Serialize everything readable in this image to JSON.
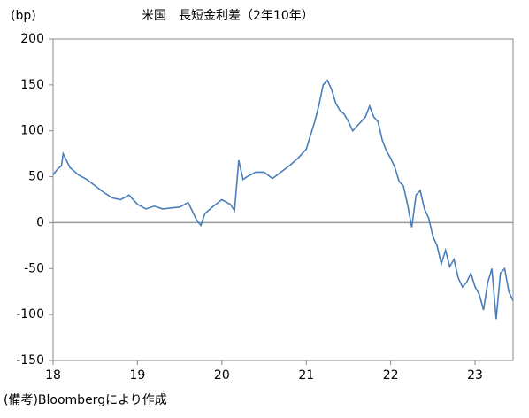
{
  "chart_data": {
    "type": "line",
    "title": "米国　長短金利差（2年10年）",
    "y_unit": "(bp)",
    "note": "(備考)Bloombergにより作成",
    "xlim": [
      18,
      23.45
    ],
    "xticks": [
      18,
      19,
      20,
      21,
      22,
      23
    ],
    "ylim": [
      -150,
      200
    ],
    "yticks": [
      -150,
      -100,
      -50,
      0,
      50,
      100,
      150,
      200
    ],
    "zero_line": true,
    "series": [
      {
        "color": "#4a7ebb",
        "x": [
          18.0,
          18.05,
          18.1,
          18.12,
          18.2,
          18.3,
          18.4,
          18.5,
          18.6,
          18.7,
          18.8,
          18.9,
          19.0,
          19.1,
          19.2,
          19.3,
          19.4,
          19.5,
          19.6,
          19.7,
          19.75,
          19.8,
          19.9,
          20.0,
          20.1,
          20.15,
          20.2,
          20.25,
          20.3,
          20.4,
          20.5,
          20.6,
          20.7,
          20.8,
          20.9,
          21.0,
          21.05,
          21.1,
          21.15,
          21.2,
          21.25,
          21.3,
          21.35,
          21.4,
          21.45,
          21.5,
          21.55,
          21.6,
          21.65,
          21.7,
          21.75,
          21.8,
          21.85,
          21.9,
          21.95,
          22.0,
          22.05,
          22.1,
          22.15,
          22.2,
          22.25,
          22.3,
          22.35,
          22.4,
          22.45,
          22.5,
          22.55,
          22.6,
          22.65,
          22.7,
          22.75,
          22.8,
          22.85,
          22.9,
          22.95,
          23.0,
          23.05,
          23.1,
          23.15,
          23.2,
          23.25,
          23.3,
          23.35,
          23.4,
          23.45
        ],
        "values": [
          52,
          58,
          62,
          75,
          60,
          52,
          47,
          40,
          33,
          27,
          25,
          30,
          20,
          15,
          18,
          15,
          16,
          17,
          22,
          3,
          -3,
          10,
          18,
          25,
          20,
          13,
          68,
          47,
          50,
          55,
          55,
          48,
          55,
          62,
          70,
          80,
          95,
          110,
          128,
          150,
          155,
          145,
          130,
          122,
          118,
          110,
          100,
          105,
          110,
          115,
          127,
          115,
          110,
          90,
          78,
          70,
          60,
          45,
          40,
          20,
          -5,
          30,
          35,
          15,
          5,
          -15,
          -25,
          -45,
          -30,
          -48,
          -40,
          -60,
          -70,
          -65,
          -55,
          -70,
          -78,
          -95,
          -65,
          -50,
          -105,
          -55,
          -50,
          -75,
          -85
        ]
      }
    ]
  }
}
